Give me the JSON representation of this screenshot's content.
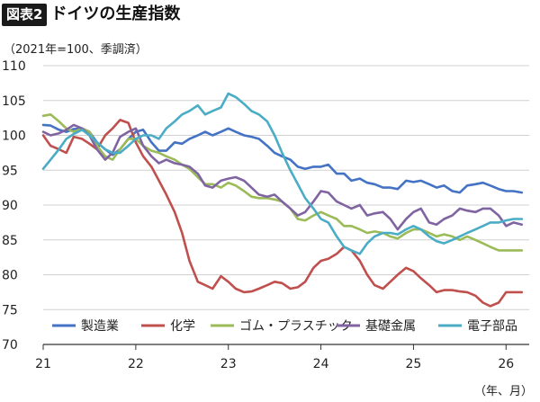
{
  "header": {
    "badge": "図表2",
    "title": "ドイツの生産指数"
  },
  "unit_note": "（2021年=100、季調済）",
  "x_unit": "（年、月）",
  "chart_data": {
    "type": "line",
    "title": "ドイツの生産指数",
    "ylabel": "（2021年=100、季調済）",
    "xlabel": "（年、月）",
    "ylim": [
      70,
      110
    ],
    "yticks": [
      70,
      75,
      80,
      85,
      90,
      95,
      100,
      105,
      110
    ],
    "xlim": [
      2021.0,
      2026.25
    ],
    "xticks": [
      {
        "value": 2021,
        "label": "21"
      },
      {
        "value": 2022,
        "label": "22"
      },
      {
        "value": 2023,
        "label": "23"
      },
      {
        "value": 2024,
        "label": "24"
      },
      {
        "value": 2025,
        "label": "25"
      },
      {
        "value": 2026,
        "label": "26"
      }
    ],
    "grid": true,
    "legend_position": "bottom",
    "series": [
      {
        "name": "製造業",
        "color": "#4472c4",
        "x": [
          2021.0,
          2021.08,
          2021.17,
          2021.25,
          2021.33,
          2021.42,
          2021.5,
          2021.58,
          2021.67,
          2021.75,
          2021.83,
          2021.92,
          2022.0,
          2022.08,
          2022.17,
          2022.25,
          2022.33,
          2022.42,
          2022.5,
          2022.58,
          2022.67,
          2022.75,
          2022.83,
          2022.92,
          2023.0,
          2023.08,
          2023.17,
          2023.25,
          2023.33,
          2023.42,
          2023.5,
          2023.58,
          2023.67,
          2023.75,
          2023.83,
          2023.92,
          2024.0,
          2024.08,
          2024.17,
          2024.25,
          2024.33,
          2024.42,
          2024.5,
          2024.58,
          2024.67,
          2024.75,
          2024.83,
          2024.92,
          2025.0,
          2025.08,
          2025.17,
          2025.25,
          2025.33,
          2025.42,
          2025.5,
          2025.58,
          2025.67,
          2025.75,
          2025.83,
          2025.92,
          2026.0,
          2026.08,
          2026.17
        ],
        "values": [
          101.5,
          101.4,
          100.8,
          100.5,
          100.9,
          101.0,
          100.5,
          99.0,
          98.0,
          97.2,
          98.0,
          99.5,
          100.5,
          100.8,
          99.0,
          97.8,
          97.8,
          99.0,
          98.8,
          99.5,
          100.0,
          100.5,
          100.0,
          100.5,
          101.0,
          100.5,
          100.0,
          99.8,
          99.5,
          98.5,
          97.5,
          97.0,
          96.5,
          95.5,
          95.2,
          95.5,
          95.5,
          95.8,
          94.5,
          94.5,
          93.5,
          93.8,
          93.2,
          93.0,
          92.5,
          92.5,
          92.3,
          93.5,
          93.3,
          93.5,
          93.0,
          92.5,
          92.8,
          92.0,
          91.8,
          92.8,
          93.0,
          93.2,
          92.8,
          92.3,
          92.0,
          92.0,
          91.8
        ]
      },
      {
        "name": "化学",
        "color": "#c0504d",
        "x": [
          2021.0,
          2021.08,
          2021.17,
          2021.25,
          2021.33,
          2021.42,
          2021.5,
          2021.58,
          2021.67,
          2021.75,
          2021.83,
          2021.92,
          2022.0,
          2022.08,
          2022.17,
          2022.25,
          2022.33,
          2022.42,
          2022.5,
          2022.58,
          2022.67,
          2022.75,
          2022.83,
          2022.92,
          2023.0,
          2023.08,
          2023.17,
          2023.25,
          2023.33,
          2023.42,
          2023.5,
          2023.58,
          2023.67,
          2023.75,
          2023.83,
          2023.92,
          2024.0,
          2024.08,
          2024.17,
          2024.25,
          2024.33,
          2024.42,
          2024.5,
          2024.58,
          2024.67,
          2024.75,
          2024.83,
          2024.92,
          2025.0,
          2025.08,
          2025.17,
          2025.25,
          2025.33,
          2025.42,
          2025.5,
          2025.58,
          2025.67,
          2025.75,
          2025.83,
          2025.92,
          2026.0,
          2026.08,
          2026.17
        ],
        "values": [
          100.0,
          98.5,
          98.0,
          97.5,
          99.8,
          99.5,
          98.8,
          98.0,
          100.0,
          101.0,
          102.2,
          101.8,
          99.0,
          97.0,
          95.5,
          93.5,
          91.5,
          89.0,
          86.0,
          82.0,
          79.0,
          78.5,
          78.0,
          79.8,
          79.0,
          78.0,
          77.5,
          77.6,
          78.0,
          78.5,
          79.0,
          78.8,
          78.0,
          78.2,
          79.0,
          81.0,
          82.0,
          82.3,
          83.0,
          84.0,
          83.5,
          82.0,
          80.0,
          78.5,
          78.0,
          79.0,
          80.0,
          81.0,
          80.5,
          79.5,
          78.5,
          77.5,
          77.8,
          77.8,
          77.6,
          77.5,
          77.0,
          76.0,
          75.5,
          76.0,
          77.5,
          77.5,
          77.5
        ]
      },
      {
        "name": "ゴム・プラスチック",
        "color": "#9bbb59",
        "x": [
          2021.0,
          2021.08,
          2021.17,
          2021.25,
          2021.33,
          2021.42,
          2021.5,
          2021.58,
          2021.67,
          2021.75,
          2021.83,
          2021.92,
          2022.0,
          2022.08,
          2022.17,
          2022.25,
          2022.33,
          2022.42,
          2022.5,
          2022.58,
          2022.67,
          2022.75,
          2022.83,
          2022.92,
          2023.0,
          2023.08,
          2023.17,
          2023.25,
          2023.33,
          2023.42,
          2023.5,
          2023.58,
          2023.67,
          2023.75,
          2023.83,
          2023.92,
          2024.0,
          2024.08,
          2024.17,
          2024.25,
          2024.33,
          2024.42,
          2024.5,
          2024.58,
          2024.67,
          2024.75,
          2024.83,
          2024.92,
          2025.0,
          2025.08,
          2025.17,
          2025.25,
          2025.33,
          2025.42,
          2025.5,
          2025.58,
          2025.67,
          2025.75,
          2025.83,
          2025.92,
          2026.0,
          2026.08,
          2026.17
        ],
        "values": [
          102.8,
          103.0,
          102.0,
          101.0,
          100.5,
          101.0,
          100.5,
          98.5,
          97.0,
          96.5,
          98.0,
          99.5,
          99.5,
          98.5,
          97.8,
          97.5,
          97.0,
          96.5,
          95.8,
          95.2,
          94.0,
          93.0,
          93.0,
          92.5,
          93.2,
          92.8,
          92.0,
          91.2,
          91.0,
          91.0,
          90.8,
          90.5,
          89.5,
          88.0,
          87.8,
          88.5,
          89.0,
          88.5,
          88.0,
          87.0,
          87.0,
          86.5,
          86.0,
          86.2,
          86.0,
          85.5,
          85.2,
          86.0,
          86.5,
          86.5,
          86.0,
          85.5,
          85.8,
          85.5,
          85.0,
          85.5,
          85.0,
          84.5,
          84.0,
          83.5,
          83.5,
          83.5,
          83.5
        ]
      },
      {
        "name": "基礎金属",
        "color": "#8064a2",
        "x": [
          2021.0,
          2021.08,
          2021.17,
          2021.25,
          2021.33,
          2021.42,
          2021.5,
          2021.58,
          2021.67,
          2021.75,
          2021.83,
          2021.92,
          2022.0,
          2022.08,
          2022.17,
          2022.25,
          2022.33,
          2022.42,
          2022.5,
          2022.58,
          2022.67,
          2022.75,
          2022.83,
          2022.92,
          2023.0,
          2023.08,
          2023.17,
          2023.25,
          2023.33,
          2023.42,
          2023.5,
          2023.58,
          2023.67,
          2023.75,
          2023.83,
          2023.92,
          2024.0,
          2024.08,
          2024.17,
          2024.25,
          2024.33,
          2024.42,
          2024.5,
          2024.58,
          2024.67,
          2024.75,
          2024.83,
          2024.92,
          2025.0,
          2025.08,
          2025.17,
          2025.25,
          2025.33,
          2025.42,
          2025.5,
          2025.58,
          2025.67,
          2025.75,
          2025.83,
          2025.92,
          2026.0,
          2026.08,
          2026.17
        ],
        "values": [
          100.5,
          100.0,
          100.3,
          100.8,
          101.5,
          101.0,
          100.0,
          98.0,
          96.5,
          97.5,
          99.8,
          100.5,
          101.0,
          98.5,
          97.0,
          96.0,
          96.5,
          96.0,
          95.8,
          95.5,
          94.5,
          92.8,
          92.5,
          93.5,
          93.8,
          94.0,
          93.5,
          92.5,
          91.5,
          91.2,
          91.5,
          90.5,
          89.5,
          88.5,
          89.0,
          90.5,
          92.0,
          91.8,
          90.5,
          90.0,
          89.5,
          90.0,
          88.5,
          88.8,
          89.0,
          88.0,
          86.5,
          88.0,
          89.0,
          89.5,
          87.5,
          87.2,
          88.0,
          88.5,
          89.5,
          89.2,
          89.0,
          89.5,
          89.5,
          88.5,
          87.0,
          87.5,
          87.2
        ]
      },
      {
        "name": "電子部品",
        "color": "#4bacc6",
        "x": [
          2021.0,
          2021.08,
          2021.17,
          2021.25,
          2021.33,
          2021.42,
          2021.5,
          2021.58,
          2021.67,
          2021.75,
          2021.83,
          2021.92,
          2022.0,
          2022.08,
          2022.17,
          2022.25,
          2022.33,
          2022.42,
          2022.5,
          2022.58,
          2022.67,
          2022.75,
          2022.83,
          2022.92,
          2023.0,
          2023.08,
          2023.17,
          2023.25,
          2023.33,
          2023.42,
          2023.5,
          2023.58,
          2023.67,
          2023.75,
          2023.83,
          2023.92,
          2024.0,
          2024.08,
          2024.17,
          2024.25,
          2024.33,
          2024.42,
          2024.5,
          2024.58,
          2024.67,
          2024.75,
          2024.83,
          2024.92,
          2025.0,
          2025.08,
          2025.17,
          2025.25,
          2025.33,
          2025.42,
          2025.5,
          2025.58,
          2025.67,
          2025.75,
          2025.83,
          2025.92,
          2026.0,
          2026.08,
          2026.17
        ],
        "values": [
          95.2,
          96.5,
          98.0,
          99.5,
          100.2,
          100.8,
          100.0,
          99.0,
          98.0,
          97.5,
          97.5,
          98.5,
          99.5,
          100.0,
          100.0,
          99.5,
          101.0,
          102.0,
          103.0,
          103.5,
          104.3,
          103.0,
          103.5,
          104.0,
          106.0,
          105.5,
          104.5,
          103.5,
          103.0,
          102.0,
          100.0,
          97.5,
          95.0,
          93.0,
          91.0,
          89.5,
          88.0,
          87.5,
          85.5,
          84.0,
          83.5,
          83.0,
          84.5,
          85.5,
          86.0,
          86.0,
          85.8,
          86.5,
          87.0,
          86.5,
          85.5,
          84.8,
          84.5,
          85.0,
          85.5,
          86.0,
          86.5,
          87.0,
          87.5,
          87.5,
          87.8,
          88.0,
          88.0
        ]
      }
    ]
  }
}
